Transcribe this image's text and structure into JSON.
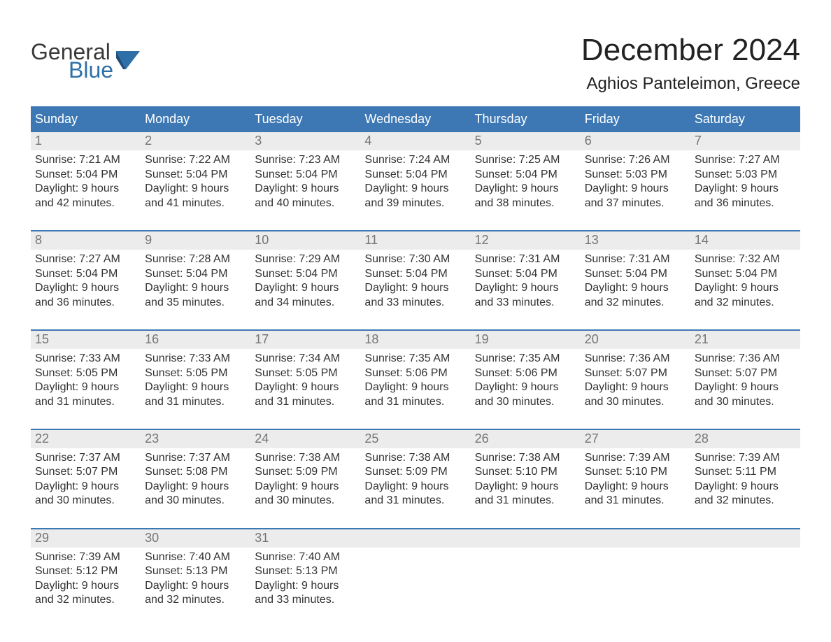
{
  "brand": {
    "word1": "General",
    "word2": "Blue",
    "text_color": "#3a3a3a",
    "blue_color": "#2f6fa8"
  },
  "title": {
    "month": "December 2024",
    "location": "Aghios Panteleimon, Greece"
  },
  "colors": {
    "header_bg": "#3d78b4",
    "header_text": "#ffffff",
    "daynum_bg": "#ececec",
    "daynum_text": "#757575",
    "body_text": "#333333",
    "topborder": "#3d78b4",
    "page_bg": "#ffffff"
  },
  "weekdays": [
    "Sunday",
    "Monday",
    "Tuesday",
    "Wednesday",
    "Thursday",
    "Friday",
    "Saturday"
  ],
  "weeks": [
    [
      {
        "n": "1",
        "sr": "Sunrise: 7:21 AM",
        "ss": "Sunset: 5:04 PM",
        "d1": "Daylight: 9 hours",
        "d2": "and 42 minutes."
      },
      {
        "n": "2",
        "sr": "Sunrise: 7:22 AM",
        "ss": "Sunset: 5:04 PM",
        "d1": "Daylight: 9 hours",
        "d2": "and 41 minutes."
      },
      {
        "n": "3",
        "sr": "Sunrise: 7:23 AM",
        "ss": "Sunset: 5:04 PM",
        "d1": "Daylight: 9 hours",
        "d2": "and 40 minutes."
      },
      {
        "n": "4",
        "sr": "Sunrise: 7:24 AM",
        "ss": "Sunset: 5:04 PM",
        "d1": "Daylight: 9 hours",
        "d2": "and 39 minutes."
      },
      {
        "n": "5",
        "sr": "Sunrise: 7:25 AM",
        "ss": "Sunset: 5:04 PM",
        "d1": "Daylight: 9 hours",
        "d2": "and 38 minutes."
      },
      {
        "n": "6",
        "sr": "Sunrise: 7:26 AM",
        "ss": "Sunset: 5:03 PM",
        "d1": "Daylight: 9 hours",
        "d2": "and 37 minutes."
      },
      {
        "n": "7",
        "sr": "Sunrise: 7:27 AM",
        "ss": "Sunset: 5:03 PM",
        "d1": "Daylight: 9 hours",
        "d2": "and 36 minutes."
      }
    ],
    [
      {
        "n": "8",
        "sr": "Sunrise: 7:27 AM",
        "ss": "Sunset: 5:04 PM",
        "d1": "Daylight: 9 hours",
        "d2": "and 36 minutes."
      },
      {
        "n": "9",
        "sr": "Sunrise: 7:28 AM",
        "ss": "Sunset: 5:04 PM",
        "d1": "Daylight: 9 hours",
        "d2": "and 35 minutes."
      },
      {
        "n": "10",
        "sr": "Sunrise: 7:29 AM",
        "ss": "Sunset: 5:04 PM",
        "d1": "Daylight: 9 hours",
        "d2": "and 34 minutes."
      },
      {
        "n": "11",
        "sr": "Sunrise: 7:30 AM",
        "ss": "Sunset: 5:04 PM",
        "d1": "Daylight: 9 hours",
        "d2": "and 33 minutes."
      },
      {
        "n": "12",
        "sr": "Sunrise: 7:31 AM",
        "ss": "Sunset: 5:04 PM",
        "d1": "Daylight: 9 hours",
        "d2": "and 33 minutes."
      },
      {
        "n": "13",
        "sr": "Sunrise: 7:31 AM",
        "ss": "Sunset: 5:04 PM",
        "d1": "Daylight: 9 hours",
        "d2": "and 32 minutes."
      },
      {
        "n": "14",
        "sr": "Sunrise: 7:32 AM",
        "ss": "Sunset: 5:04 PM",
        "d1": "Daylight: 9 hours",
        "d2": "and 32 minutes."
      }
    ],
    [
      {
        "n": "15",
        "sr": "Sunrise: 7:33 AM",
        "ss": "Sunset: 5:05 PM",
        "d1": "Daylight: 9 hours",
        "d2": "and 31 minutes."
      },
      {
        "n": "16",
        "sr": "Sunrise: 7:33 AM",
        "ss": "Sunset: 5:05 PM",
        "d1": "Daylight: 9 hours",
        "d2": "and 31 minutes."
      },
      {
        "n": "17",
        "sr": "Sunrise: 7:34 AM",
        "ss": "Sunset: 5:05 PM",
        "d1": "Daylight: 9 hours",
        "d2": "and 31 minutes."
      },
      {
        "n": "18",
        "sr": "Sunrise: 7:35 AM",
        "ss": "Sunset: 5:06 PM",
        "d1": "Daylight: 9 hours",
        "d2": "and 31 minutes."
      },
      {
        "n": "19",
        "sr": "Sunrise: 7:35 AM",
        "ss": "Sunset: 5:06 PM",
        "d1": "Daylight: 9 hours",
        "d2": "and 30 minutes."
      },
      {
        "n": "20",
        "sr": "Sunrise: 7:36 AM",
        "ss": "Sunset: 5:07 PM",
        "d1": "Daylight: 9 hours",
        "d2": "and 30 minutes."
      },
      {
        "n": "21",
        "sr": "Sunrise: 7:36 AM",
        "ss": "Sunset: 5:07 PM",
        "d1": "Daylight: 9 hours",
        "d2": "and 30 minutes."
      }
    ],
    [
      {
        "n": "22",
        "sr": "Sunrise: 7:37 AM",
        "ss": "Sunset: 5:07 PM",
        "d1": "Daylight: 9 hours",
        "d2": "and 30 minutes."
      },
      {
        "n": "23",
        "sr": "Sunrise: 7:37 AM",
        "ss": "Sunset: 5:08 PM",
        "d1": "Daylight: 9 hours",
        "d2": "and 30 minutes."
      },
      {
        "n": "24",
        "sr": "Sunrise: 7:38 AM",
        "ss": "Sunset: 5:09 PM",
        "d1": "Daylight: 9 hours",
        "d2": "and 30 minutes."
      },
      {
        "n": "25",
        "sr": "Sunrise: 7:38 AM",
        "ss": "Sunset: 5:09 PM",
        "d1": "Daylight: 9 hours",
        "d2": "and 31 minutes."
      },
      {
        "n": "26",
        "sr": "Sunrise: 7:38 AM",
        "ss": "Sunset: 5:10 PM",
        "d1": "Daylight: 9 hours",
        "d2": "and 31 minutes."
      },
      {
        "n": "27",
        "sr": "Sunrise: 7:39 AM",
        "ss": "Sunset: 5:10 PM",
        "d1": "Daylight: 9 hours",
        "d2": "and 31 minutes."
      },
      {
        "n": "28",
        "sr": "Sunrise: 7:39 AM",
        "ss": "Sunset: 5:11 PM",
        "d1": "Daylight: 9 hours",
        "d2": "and 32 minutes."
      }
    ],
    [
      {
        "n": "29",
        "sr": "Sunrise: 7:39 AM",
        "ss": "Sunset: 5:12 PM",
        "d1": "Daylight: 9 hours",
        "d2": "and 32 minutes."
      },
      {
        "n": "30",
        "sr": "Sunrise: 7:40 AM",
        "ss": "Sunset: 5:13 PM",
        "d1": "Daylight: 9 hours",
        "d2": "and 32 minutes."
      },
      {
        "n": "31",
        "sr": "Sunrise: 7:40 AM",
        "ss": "Sunset: 5:13 PM",
        "d1": "Daylight: 9 hours",
        "d2": "and 33 minutes."
      },
      {
        "n": "",
        "sr": "",
        "ss": "",
        "d1": "",
        "d2": ""
      },
      {
        "n": "",
        "sr": "",
        "ss": "",
        "d1": "",
        "d2": ""
      },
      {
        "n": "",
        "sr": "",
        "ss": "",
        "d1": "",
        "d2": ""
      },
      {
        "n": "",
        "sr": "",
        "ss": "",
        "d1": "",
        "d2": ""
      }
    ]
  ]
}
